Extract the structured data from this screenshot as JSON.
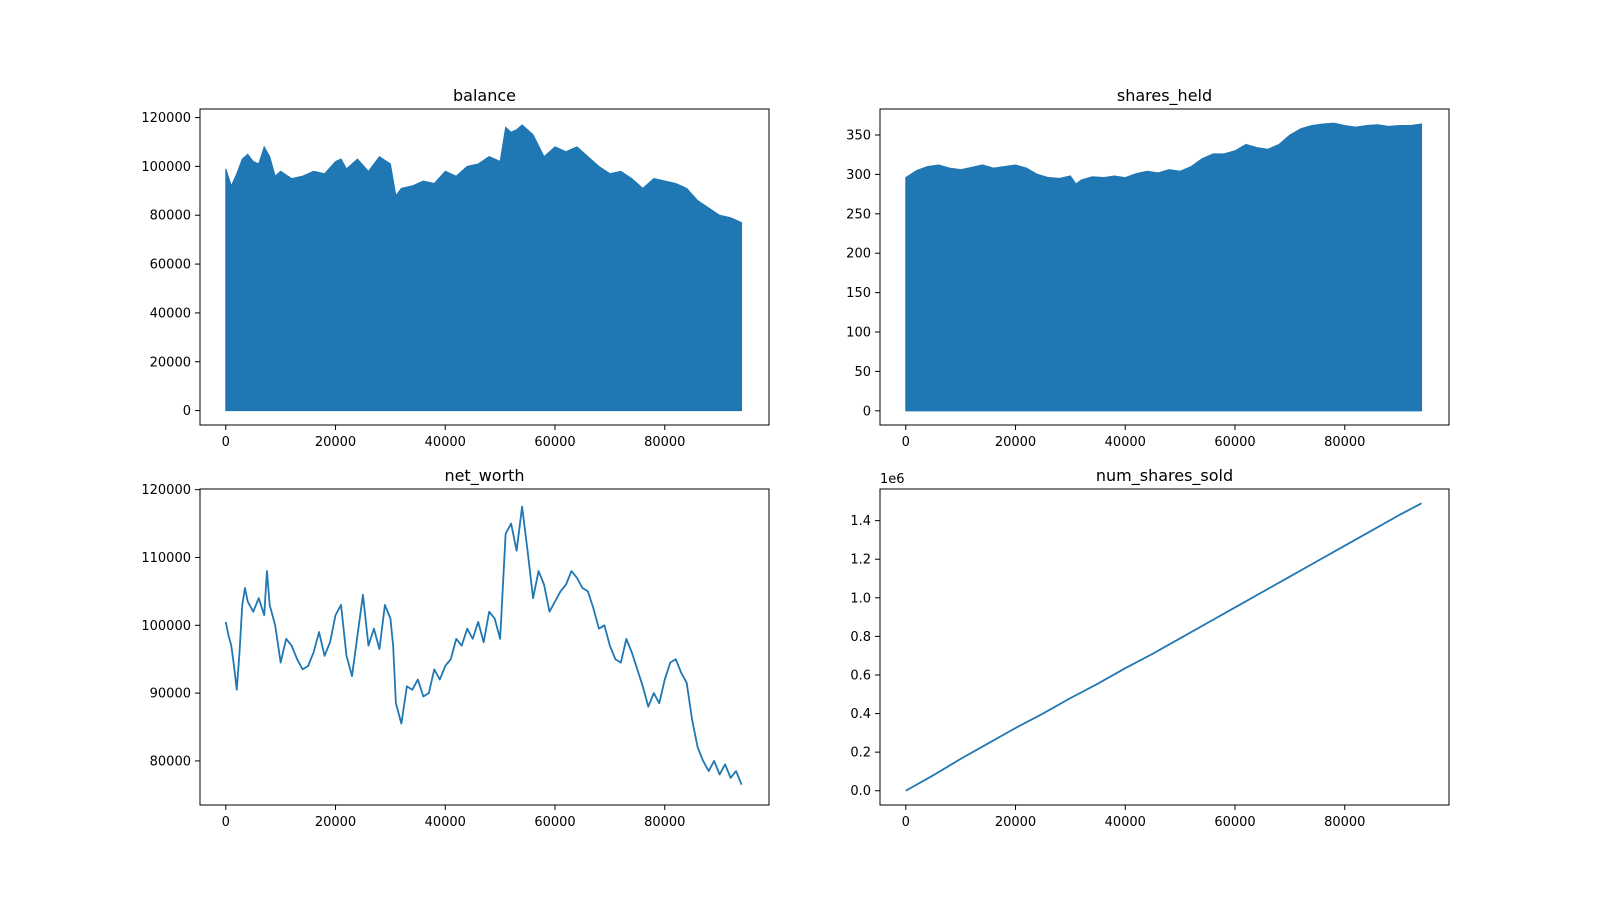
{
  "chart_data": [
    {
      "type": "area",
      "title": "balance",
      "xlabel": "",
      "ylabel": "",
      "xlim": [
        -4700,
        99000
      ],
      "ylim": [
        -5900,
        123500
      ],
      "xticks": [
        0,
        20000,
        40000,
        60000,
        80000
      ],
      "xtick_labels": [
        "0",
        "20000",
        "40000",
        "60000",
        "80000"
      ],
      "yticks": [
        0,
        20000,
        40000,
        60000,
        80000,
        100000,
        120000
      ],
      "ytick_labels": [
        "0",
        "20000",
        "40000",
        "60000",
        "80000",
        "100000",
        "120000"
      ],
      "grid": false,
      "color": "#1f77b4",
      "series": [
        {
          "x": [
            0,
            1000,
            2000,
            3000,
            4000,
            5000,
            6000,
            7000,
            8000,
            9000,
            10000,
            12000,
            14000,
            16000,
            18000,
            20000,
            21000,
            22000,
            24000,
            26000,
            28000,
            30000,
            31000,
            32000,
            34000,
            36000,
            38000,
            40000,
            42000,
            44000,
            46000,
            48000,
            50000,
            51000,
            52000,
            53000,
            54000,
            56000,
            58000,
            60000,
            62000,
            64000,
            66000,
            68000,
            70000,
            72000,
            74000,
            76000,
            78000,
            80000,
            82000,
            84000,
            86000,
            88000,
            90000,
            92000,
            94000
          ],
          "upper": [
            99000,
            92000,
            97000,
            103000,
            105000,
            102000,
            101000,
            108000,
            104000,
            96000,
            98000,
            95000,
            96000,
            98000,
            97000,
            102000,
            103000,
            99000,
            103000,
            98000,
            104000,
            101000,
            88000,
            91000,
            92000,
            94000,
            93000,
            98000,
            96000,
            100000,
            101000,
            104000,
            102000,
            116000,
            114000,
            115000,
            117000,
            113000,
            104000,
            108000,
            106000,
            108000,
            104000,
            100000,
            97000,
            98000,
            95000,
            91000,
            95000,
            94000,
            93000,
            91000,
            86000,
            83000,
            80000,
            79000,
            77000
          ],
          "lower": 0
        }
      ]
    },
    {
      "type": "area",
      "title": "shares_held",
      "xlabel": "",
      "ylabel": "",
      "xlim": [
        -4700,
        99000
      ],
      "ylim": [
        -18,
        383
      ],
      "xticks": [
        0,
        20000,
        40000,
        60000,
        80000
      ],
      "xtick_labels": [
        "0",
        "20000",
        "40000",
        "60000",
        "80000"
      ],
      "yticks": [
        0,
        50,
        100,
        150,
        200,
        250,
        300,
        350
      ],
      "ytick_labels": [
        "0",
        "50",
        "100",
        "150",
        "200",
        "250",
        "300",
        "350"
      ],
      "grid": false,
      "color": "#1f77b4",
      "series": [
        {
          "x": [
            0,
            2000,
            4000,
            6000,
            8000,
            10000,
            12000,
            14000,
            16000,
            18000,
            20000,
            22000,
            24000,
            26000,
            28000,
            30000,
            31000,
            32000,
            34000,
            36000,
            38000,
            40000,
            42000,
            44000,
            46000,
            48000,
            50000,
            52000,
            54000,
            56000,
            58000,
            60000,
            62000,
            64000,
            66000,
            68000,
            70000,
            72000,
            74000,
            76000,
            78000,
            80000,
            82000,
            84000,
            86000,
            88000,
            90000,
            92000,
            94000
          ],
          "upper": [
            296,
            305,
            310,
            312,
            308,
            306,
            309,
            312,
            308,
            310,
            312,
            308,
            300,
            296,
            295,
            298,
            288,
            293,
            297,
            296,
            298,
            296,
            301,
            304,
            302,
            306,
            304,
            310,
            320,
            326,
            326,
            330,
            338,
            334,
            332,
            338,
            350,
            358,
            362,
            364,
            365,
            362,
            360,
            362,
            363,
            361,
            362,
            362,
            364
          ],
          "lower": 0
        }
      ]
    },
    {
      "type": "line",
      "title": "net_worth",
      "xlabel": "",
      "ylabel": "",
      "xlim": [
        -4700,
        99000
      ],
      "ylim": [
        73500,
        120100
      ],
      "xticks": [
        0,
        20000,
        40000,
        60000,
        80000
      ],
      "xtick_labels": [
        "0",
        "20000",
        "40000",
        "60000",
        "80000"
      ],
      "yticks": [
        80000,
        90000,
        100000,
        110000,
        120000
      ],
      "ytick_labels": [
        "80000",
        "90000",
        "100000",
        "110000",
        "120000"
      ],
      "grid": false,
      "color": "#1f77b4",
      "series": [
        {
          "x": [
            0,
            500,
            1000,
            1500,
            2000,
            2500,
            3000,
            3500,
            4000,
            5000,
            6000,
            7000,
            7500,
            8000,
            9000,
            10000,
            11000,
            12000,
            13000,
            14000,
            15000,
            16000,
            17000,
            18000,
            19000,
            20000,
            21000,
            22000,
            23000,
            24000,
            25000,
            26000,
            27000,
            28000,
            29000,
            30000,
            30500,
            31000,
            32000,
            33000,
            34000,
            35000,
            36000,
            37000,
            38000,
            39000,
            40000,
            41000,
            42000,
            43000,
            44000,
            45000,
            46000,
            47000,
            48000,
            49000,
            50000,
            51000,
            52000,
            53000,
            54000,
            55000,
            56000,
            57000,
            58000,
            59000,
            60000,
            61000,
            62000,
            63000,
            64000,
            65000,
            66000,
            67000,
            68000,
            69000,
            70000,
            71000,
            72000,
            73000,
            74000,
            75000,
            76000,
            77000,
            78000,
            79000,
            80000,
            81000,
            82000,
            83000,
            84000,
            85000,
            86000,
            87000,
            88000,
            89000,
            90000,
            91000,
            92000,
            93000,
            94000
          ],
          "values": [
            100500,
            98500,
            97000,
            94000,
            90500,
            96000,
            103000,
            105500,
            103500,
            102000,
            104000,
            101500,
            108000,
            103000,
            100000,
            94500,
            98000,
            97000,
            95000,
            93500,
            94000,
            96000,
            99000,
            95500,
            97500,
            101500,
            103000,
            95500,
            92500,
            98500,
            104500,
            97000,
            99500,
            96500,
            103000,
            101000,
            97000,
            88500,
            85500,
            91000,
            90500,
            92000,
            89500,
            90000,
            93500,
            92000,
            94000,
            95000,
            98000,
            97000,
            99500,
            98000,
            100500,
            97500,
            102000,
            101000,
            98000,
            113500,
            115000,
            111000,
            117500,
            111000,
            104000,
            108000,
            106000,
            102000,
            103500,
            105000,
            106000,
            108000,
            107000,
            105500,
            105000,
            102500,
            99500,
            100000,
            97000,
            95000,
            94500,
            98000,
            96000,
            93500,
            91000,
            88000,
            90000,
            88500,
            92000,
            94500,
            95000,
            93000,
            91500,
            86000,
            82000,
            80000,
            78500,
            80000,
            78000,
            79500,
            77500,
            78500,
            76500
          ]
        }
      ]
    },
    {
      "type": "line",
      "title": "num_shares_sold",
      "xlabel": "",
      "ylabel": "",
      "offset_label": "1e6",
      "xlim": [
        -4700,
        99000
      ],
      "ylim": [
        -0.074,
        1.564
      ],
      "xticks": [
        0,
        20000,
        40000,
        60000,
        80000
      ],
      "xtick_labels": [
        "0",
        "20000",
        "40000",
        "60000",
        "80000"
      ],
      "yticks": [
        0,
        0.2,
        0.4,
        0.6,
        0.8,
        1.0,
        1.2,
        1.4
      ],
      "ytick_labels": [
        "0.0",
        "0.2",
        "0.4",
        "0.6",
        "0.8",
        "1.0",
        "1.2",
        "1.4"
      ],
      "grid": false,
      "color": "#1f77b4",
      "series": [
        {
          "x": [
            0,
            5000,
            10000,
            15000,
            20000,
            25000,
            30000,
            35000,
            40000,
            45000,
            50000,
            55000,
            60000,
            65000,
            70000,
            75000,
            80000,
            85000,
            90000,
            94000
          ],
          "values": [
            0,
            0.08,
            0.165,
            0.245,
            0.325,
            0.4,
            0.48,
            0.555,
            0.635,
            0.71,
            0.79,
            0.87,
            0.95,
            1.03,
            1.11,
            1.19,
            1.27,
            1.35,
            1.43,
            1.49
          ]
        }
      ]
    }
  ]
}
